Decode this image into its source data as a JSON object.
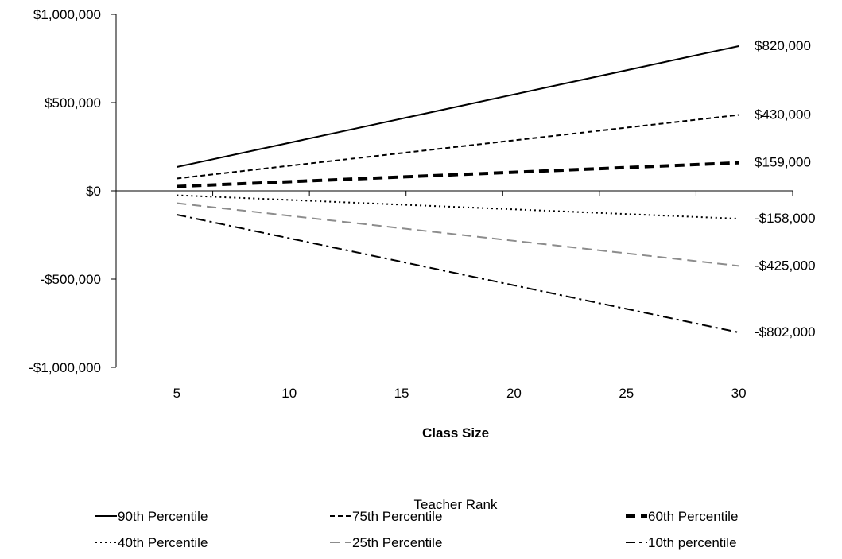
{
  "chart_data": {
    "type": "line",
    "title": "",
    "xlabel": "Class Size",
    "ylabel": "",
    "x": [
      5,
      30
    ],
    "xticks": [
      5,
      10,
      15,
      20,
      25,
      30
    ],
    "xlim": [
      2.3,
      32.4
    ],
    "ylim": [
      -1000000,
      1000000
    ],
    "yticks": [
      1000000,
      500000,
      0,
      -500000,
      -1000000
    ],
    "ytick_labels": [
      "$1,000,000",
      "$500,000",
      "$0",
      "-$500,000",
      "-$1,000,000"
    ],
    "grid": false,
    "legend_title": "Teacher Rank",
    "legend_position": "bottom",
    "series": [
      {
        "name": "90th Percentile",
        "values": [
          135000,
          820000
        ],
        "end_label": "$820,000",
        "color": "#000000",
        "dash": "solid",
        "weight": "normal"
      },
      {
        "name": "75th Percentile",
        "values": [
          70000,
          430000
        ],
        "end_label": "$430,000",
        "color": "#000000",
        "dash": "dash",
        "weight": "normal"
      },
      {
        "name": "60th Percentile",
        "values": [
          25000,
          159000
        ],
        "end_label": "$159,000",
        "color": "#000000",
        "dash": "longdash",
        "weight": "bold"
      },
      {
        "name": "40th Percentile",
        "values": [
          -25000,
          -158000
        ],
        "end_label": "-$158,000",
        "color": "#000000",
        "dash": "dot",
        "weight": "normal"
      },
      {
        "name": "25th Percentile",
        "values": [
          -70000,
          -425000
        ],
        "end_label": "-$425,000",
        "color": "#8c8c8c",
        "dash": "longdash",
        "weight": "normal"
      },
      {
        "name": "10th percentile",
        "values": [
          -135000,
          -802000
        ],
        "end_label": "-$802,000",
        "color": "#000000",
        "dash": "dashdot",
        "weight": "normal"
      }
    ]
  }
}
